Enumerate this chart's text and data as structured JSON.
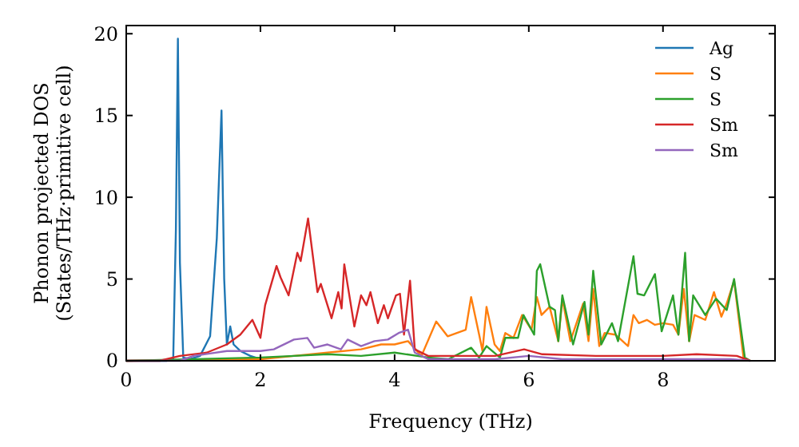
{
  "chart_data": {
    "type": "line",
    "xlabel": "Frequency (THz)",
    "ylabel": "Phonon projected DOS\n(States/THz·primitive cell)",
    "xlim": [
      0,
      9.67
    ],
    "ylim": [
      0,
      20.5
    ],
    "xticks": [
      0,
      2,
      4,
      6,
      8
    ],
    "yticks": [
      0,
      5,
      10,
      15,
      20
    ],
    "grid": false,
    "legend": "top right",
    "line_style": "solid",
    "marker": "none",
    "series": [
      {
        "name": "Ag",
        "color": "#1f77b4",
        "x": [
          0,
          0.6,
          0.7,
          0.74,
          0.77,
          0.8,
          0.85,
          0.95,
          1.1,
          1.25,
          1.35,
          1.42,
          1.46,
          1.5,
          1.55,
          1.6,
          1.7,
          1.85,
          2.0
        ],
        "values": [
          0,
          0,
          0.1,
          8,
          19.7,
          6,
          0.2,
          0.1,
          0.3,
          1.5,
          7.5,
          15.3,
          5,
          1.0,
          2.1,
          1.0,
          0.6,
          0.3,
          0.1
        ]
      },
      {
        "name": "S",
        "color": "#ff7f0e",
        "x": [
          0,
          2.0,
          2.5,
          3.0,
          3.5,
          3.8,
          4.0,
          4.2,
          4.4,
          4.62,
          4.79,
          5.06,
          5.14,
          5.26,
          5.31,
          5.37,
          5.49,
          5.57,
          5.65,
          5.77,
          5.9,
          6.04,
          6.12,
          6.19,
          6.31,
          6.44,
          6.5,
          6.62,
          6.81,
          6.89,
          6.96,
          7.05,
          7.13,
          7.29,
          7.48,
          7.56,
          7.64,
          7.76,
          7.88,
          8.0,
          8.15,
          8.23,
          8.31,
          8.39,
          8.47,
          8.63,
          8.76,
          8.87,
          8.95,
          9.06,
          9.2,
          9.3
        ],
        "values": [
          0,
          0.1,
          0.3,
          0.5,
          0.7,
          1.0,
          1.0,
          1.2,
          0.3,
          2.4,
          1.5,
          1.9,
          3.9,
          1.6,
          0.6,
          3.3,
          1.0,
          0.6,
          1.7,
          1.4,
          2.8,
          1.9,
          3.9,
          2.8,
          3.3,
          1.2,
          3.8,
          1.2,
          3.5,
          1.2,
          4.4,
          0.9,
          1.7,
          1.6,
          0.9,
          2.8,
          2.3,
          2.5,
          2.2,
          2.3,
          2.2,
          1.6,
          4.4,
          1.2,
          2.8,
          2.5,
          4.2,
          2.7,
          3.5,
          4.9,
          0.2,
          0
        ]
      },
      {
        "name": "S",
        "color": "#2ca02c",
        "x": [
          0,
          2.0,
          2.5,
          3.0,
          3.5,
          4.0,
          4.5,
          4.8,
          5.14,
          5.26,
          5.37,
          5.57,
          5.65,
          5.84,
          5.92,
          6.08,
          6.12,
          6.17,
          6.31,
          6.39,
          6.44,
          6.5,
          6.66,
          6.83,
          6.89,
          6.96,
          7.08,
          7.24,
          7.33,
          7.56,
          7.62,
          7.72,
          7.88,
          7.98,
          8.15,
          8.23,
          8.33,
          8.39,
          8.45,
          8.63,
          8.79,
          8.95,
          9.06,
          9.22,
          9.3
        ],
        "values": [
          0,
          0.2,
          0.3,
          0.4,
          0.3,
          0.5,
          0.2,
          0.1,
          0.8,
          0.2,
          0.9,
          0.2,
          1.4,
          1.4,
          2.8,
          1.6,
          5.5,
          5.9,
          3.3,
          3.1,
          1.2,
          4.0,
          1.0,
          3.6,
          1.6,
          5.5,
          1.0,
          2.3,
          1.2,
          6.4,
          4.1,
          4.0,
          5.3,
          1.8,
          4.0,
          1.6,
          6.6,
          1.2,
          4.0,
          2.8,
          3.8,
          3.1,
          5.0,
          0.2,
          0
        ]
      },
      {
        "name": "Sm",
        "color": "#d62728",
        "x": [
          0,
          0.5,
          0.8,
          1.2,
          1.5,
          1.7,
          1.88,
          2.0,
          2.07,
          2.24,
          2.3,
          2.42,
          2.55,
          2.6,
          2.71,
          2.85,
          2.9,
          3.06,
          3.16,
          3.21,
          3.25,
          3.4,
          3.5,
          3.58,
          3.64,
          3.75,
          3.84,
          3.9,
          4.02,
          4.08,
          4.14,
          4.23,
          4.3,
          4.5,
          5.0,
          5.5,
          5.93,
          6.2,
          7,
          8,
          8.5,
          9.1,
          9.3
        ],
        "values": [
          0,
          0,
          0.3,
          0.5,
          1.0,
          1.6,
          2.5,
          1.4,
          3.4,
          5.8,
          5.1,
          4.0,
          6.6,
          6.1,
          8.7,
          4.2,
          4.7,
          2.6,
          4.2,
          3.2,
          5.9,
          2.1,
          4.0,
          3.4,
          4.2,
          2.3,
          3.4,
          2.6,
          4.0,
          4.1,
          1.6,
          4.9,
          0.7,
          0.3,
          0.3,
          0.3,
          0.7,
          0.4,
          0.3,
          0.3,
          0.4,
          0.3,
          0
        ]
      },
      {
        "name": "Sm",
        "color": "#9467bd",
        "x": [
          0,
          0.8,
          1.0,
          1.5,
          2.0,
          2.2,
          2.5,
          2.7,
          2.8,
          3.0,
          3.2,
          3.3,
          3.5,
          3.7,
          3.9,
          4.06,
          4.2,
          4.3,
          4.5,
          5.0,
          5.5,
          6.0,
          6.5,
          7,
          8,
          9,
          9.3
        ],
        "values": [
          0,
          0,
          0.3,
          0.6,
          0.6,
          0.7,
          1.3,
          1.4,
          0.8,
          1.0,
          0.7,
          1.3,
          0.9,
          1.2,
          1.3,
          1.7,
          1.9,
          0.5,
          0.1,
          0.1,
          0.1,
          0.3,
          0.1,
          0.1,
          0.1,
          0.1,
          0
        ]
      }
    ]
  }
}
